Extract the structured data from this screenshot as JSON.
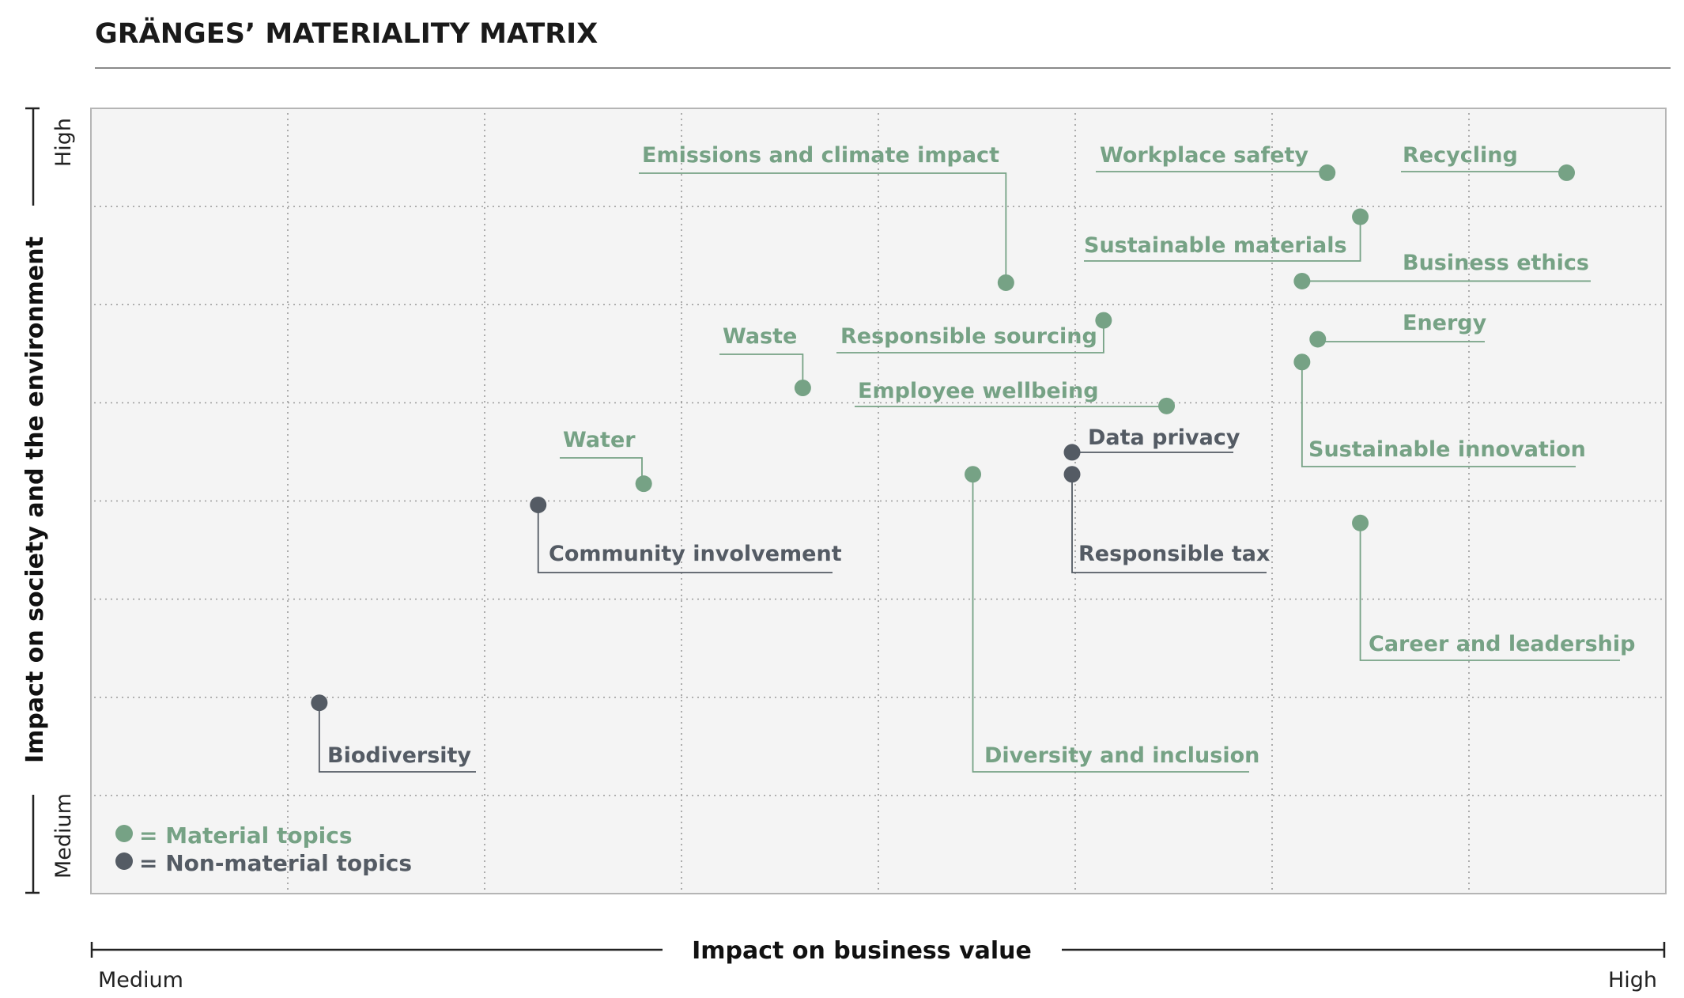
{
  "title": "GRÄNGES’ MATERIALITY MATRIX",
  "colors": {
    "material": "#76a285",
    "non_material": "#545b64",
    "plot_bg": "#f4f4f4",
    "grid": "#9a9a9a",
    "axis": "#222222"
  },
  "legend": {
    "material": "= Material topics",
    "non_material": "= Non-material topics"
  },
  "chart_data": {
    "type": "scatter",
    "title": "GRÄNGES’ MATERIALITY MATRIX",
    "xlabel": "Impact on business value",
    "ylabel": "Impact on society and the environment",
    "x_ends": [
      "Medium",
      "High"
    ],
    "y_ends": [
      "Medium",
      "High"
    ],
    "grid": true,
    "legend_position": "bottom-left",
    "series": [
      {
        "name": "Material topics",
        "category": "material"
      },
      {
        "name": "Non-material topics",
        "category": "non_material"
      }
    ],
    "points": [
      {
        "label": "Recycling",
        "category": "material",
        "x": 0.937,
        "y": 0.918
      },
      {
        "label": "Workplace safety",
        "category": "material",
        "x": 0.785,
        "y": 0.918
      },
      {
        "label": "Sustainable materials",
        "category": "material",
        "x": 0.806,
        "y": 0.862
      },
      {
        "label": "Emissions and climate impact",
        "category": "material",
        "x": 0.581,
        "y": 0.778
      },
      {
        "label": "Business ethics",
        "category": "material",
        "x": 0.769,
        "y": 0.78
      },
      {
        "label": "Responsible sourcing",
        "category": "material",
        "x": 0.643,
        "y": 0.73
      },
      {
        "label": "Energy",
        "category": "material",
        "x": 0.779,
        "y": 0.706
      },
      {
        "label": "Sustainable innovation",
        "category": "material",
        "x": 0.769,
        "y": 0.677
      },
      {
        "label": "Waste",
        "category": "material",
        "x": 0.452,
        "y": 0.644
      },
      {
        "label": "Employee wellbeing",
        "category": "material",
        "x": 0.683,
        "y": 0.621
      },
      {
        "label": "Data privacy",
        "category": "non_material",
        "x": 0.623,
        "y": 0.562
      },
      {
        "label": "Responsible tax",
        "category": "non_material",
        "x": 0.623,
        "y": 0.534
      },
      {
        "label": "Diversity and inclusion",
        "category": "material",
        "x": 0.56,
        "y": 0.534
      },
      {
        "label": "Water",
        "category": "material",
        "x": 0.351,
        "y": 0.522
      },
      {
        "label": "Community involvement",
        "category": "non_material",
        "x": 0.284,
        "y": 0.495
      },
      {
        "label": "Career and leadership",
        "category": "material",
        "x": 0.806,
        "y": 0.472
      },
      {
        "label": "Biodiversity",
        "category": "non_material",
        "x": 0.145,
        "y": 0.243
      }
    ]
  }
}
